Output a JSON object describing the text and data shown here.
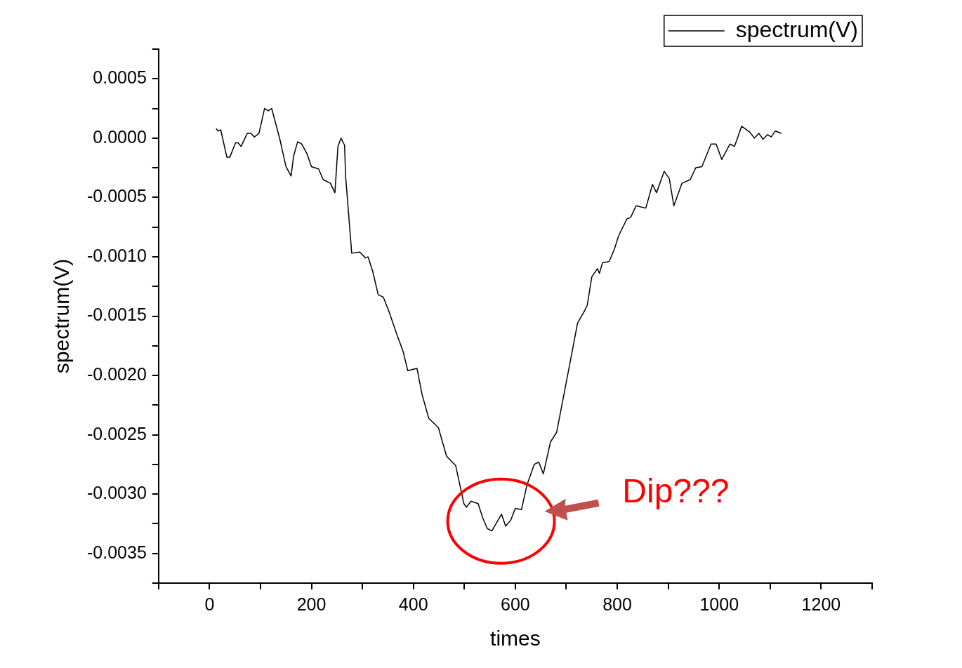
{
  "chart_data": {
    "type": "line",
    "xlabel": "times",
    "ylabel": "spectrum(V)",
    "legend": "top right",
    "grid": false,
    "marker": "none",
    "line_style": "solid",
    "xlim": [
      -100,
      1300
    ],
    "xticks": [
      {
        "value": -100,
        "label": null
      },
      0,
      {
        "value": 100,
        "label": null
      },
      200,
      {
        "value": 300,
        "label": null
      },
      400,
      {
        "value": 500,
        "label": null
      },
      600,
      {
        "value": 700,
        "label": null
      },
      800,
      {
        "value": 900,
        "label": null
      },
      1000,
      {
        "value": 1100,
        "label": null
      },
      1200,
      {
        "value": 1300,
        "label": null
      }
    ],
    "ylim": [
      -0.00375,
      0.00075
    ],
    "yticks": [
      {
        "value": -0.00375,
        "label": null
      },
      {
        "value": -0.0035,
        "label": "-0.0035"
      },
      {
        "value": -0.00325,
        "label": null
      },
      {
        "value": -0.003,
        "label": "-0.0030"
      },
      {
        "value": -0.00275,
        "label": null
      },
      {
        "value": -0.0025,
        "label": "-0.0025"
      },
      {
        "value": -0.00225,
        "label": null
      },
      {
        "value": -0.002,
        "label": "-0.0020"
      },
      {
        "value": -0.00175,
        "label": null
      },
      {
        "value": -0.0015,
        "label": "-0.0015"
      },
      {
        "value": -0.00125,
        "label": null
      },
      {
        "value": -0.001,
        "label": "-0.0010"
      },
      {
        "value": -0.00075,
        "label": null
      },
      {
        "value": -0.0005,
        "label": "-0.0005"
      },
      {
        "value": -0.00025,
        "label": null
      },
      {
        "value": 0,
        "label": "0.0000"
      },
      {
        "value": 0.00025,
        "label": null
      },
      {
        "value": 0.0005,
        "label": "0.0005"
      },
      {
        "value": 0.00075,
        "label": null
      }
    ],
    "annotations": [
      "Dip???"
    ],
    "series": [
      {
        "name": "spectrum(V)",
        "color": "#000000",
        "x": [
          13,
          17,
          22,
          34,
          40,
          51,
          56,
          62,
          74,
          81,
          88,
          97,
          108,
          115,
          122,
          138,
          150,
          160,
          165,
          173,
          181,
          191,
          200,
          214,
          223,
          237,
          246,
          252,
          258,
          265,
          267,
          279,
          295,
          306,
          311,
          320,
          331,
          341,
          352,
          368,
          380,
          389,
          407,
          417,
          430,
          449,
          465,
          483,
          499,
          504,
          513,
          527,
          536,
          545,
          554,
          566,
          573,
          581,
          591,
          600,
          612,
          623,
          637,
          646,
          655,
          669,
          681,
          690,
          715,
          722,
          734,
          741,
          750,
          761,
          765,
          771,
          784,
          794,
          803,
          819,
          826,
          837,
          856,
          869,
          877,
          892,
          902,
          911,
          927,
          943,
          954,
          966,
          984,
          994,
          1005,
          1021,
          1030,
          1044,
          1060,
          1069,
          1078,
          1086,
          1095,
          1102,
          1110,
          1122
        ],
        "values": [
          8e-05,
          6e-05,
          7e-05,
          -0.00016,
          -0.00016,
          -4e-05,
          -4e-05,
          -7e-05,
          4e-05,
          4e-05,
          1e-05,
          4e-05,
          0.00025,
          0.00023,
          0.00025,
          -1e-05,
          -0.00024,
          -0.00032,
          -0.00015,
          -3e-05,
          -5e-05,
          -0.00013,
          -0.00024,
          -0.00026,
          -0.00035,
          -0.00038,
          -0.00046,
          -7e-05,
          0,
          -6e-05,
          -0.00032,
          -0.00097,
          -0.00096,
          -0.00101,
          -0.001,
          -0.00112,
          -0.00132,
          -0.00134,
          -0.00146,
          -0.00166,
          -0.0018,
          -0.00196,
          -0.00194,
          -0.00216,
          -0.00236,
          -0.00244,
          -0.00268,
          -0.00276,
          -0.00308,
          -0.00311,
          -0.00306,
          -0.00308,
          -0.0032,
          -0.00329,
          -0.00331,
          -0.00322,
          -0.00317,
          -0.00327,
          -0.00322,
          -0.00312,
          -0.00313,
          -0.00292,
          -0.00275,
          -0.00273,
          -0.00283,
          -0.00256,
          -0.00248,
          -0.00228,
          -0.00172,
          -0.00156,
          -0.00147,
          -0.00141,
          -0.00117,
          -0.0011,
          -0.00114,
          -0.00105,
          -0.00104,
          -0.00094,
          -0.00082,
          -0.00068,
          -0.00067,
          -0.00057,
          -0.00059,
          -0.00039,
          -0.00046,
          -0.00028,
          -0.00034,
          -0.00057,
          -0.00038,
          -0.00035,
          -0.00025,
          -0.00024,
          -5e-05,
          -5e-05,
          -0.00018,
          -5e-05,
          -7e-05,
          0.0001,
          5e-05,
          0,
          4e-05,
          -1e-05,
          3e-05,
          1e-05,
          6e-05,
          4e-05
        ]
      }
    ]
  }
}
